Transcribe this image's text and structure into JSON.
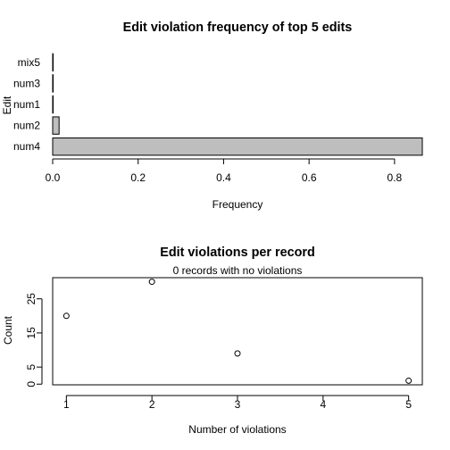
{
  "chart_data": [
    {
      "type": "bar",
      "orientation": "horizontal",
      "title": "Edit violation frequency of top 5 edits",
      "xlabel": "Frequency",
      "ylabel": "Edit",
      "categories": [
        "num4",
        "num2",
        "num1",
        "num3",
        "mix5"
      ],
      "values": [
        0.865,
        0.015,
        0.0,
        0.0,
        0.0
      ],
      "xlim": [
        0,
        0.865
      ],
      "xticks": [
        0.0,
        0.2,
        0.4,
        0.6,
        0.8
      ],
      "xtick_labels": [
        "0.0",
        "0.2",
        "0.4",
        "0.6",
        "0.8"
      ],
      "bar_color": "#bebebe"
    },
    {
      "type": "scatter",
      "title": "Edit violations per record",
      "subtitle": "0 records with no violations",
      "xlabel": "Number of violations",
      "ylabel": "Count",
      "x": [
        1,
        2,
        3,
        5
      ],
      "y": [
        20,
        30,
        9,
        1
      ],
      "xlim": [
        0.84,
        5.16
      ],
      "ylim": [
        -0.2,
        31.2
      ],
      "xticks": [
        1,
        2,
        3,
        4,
        5
      ],
      "xtick_labels": [
        "1",
        "2",
        "3",
        "4",
        "5"
      ],
      "yticks": [
        0,
        5,
        15,
        25
      ],
      "ytick_labels": [
        "0",
        "5",
        "15",
        "25"
      ]
    }
  ]
}
